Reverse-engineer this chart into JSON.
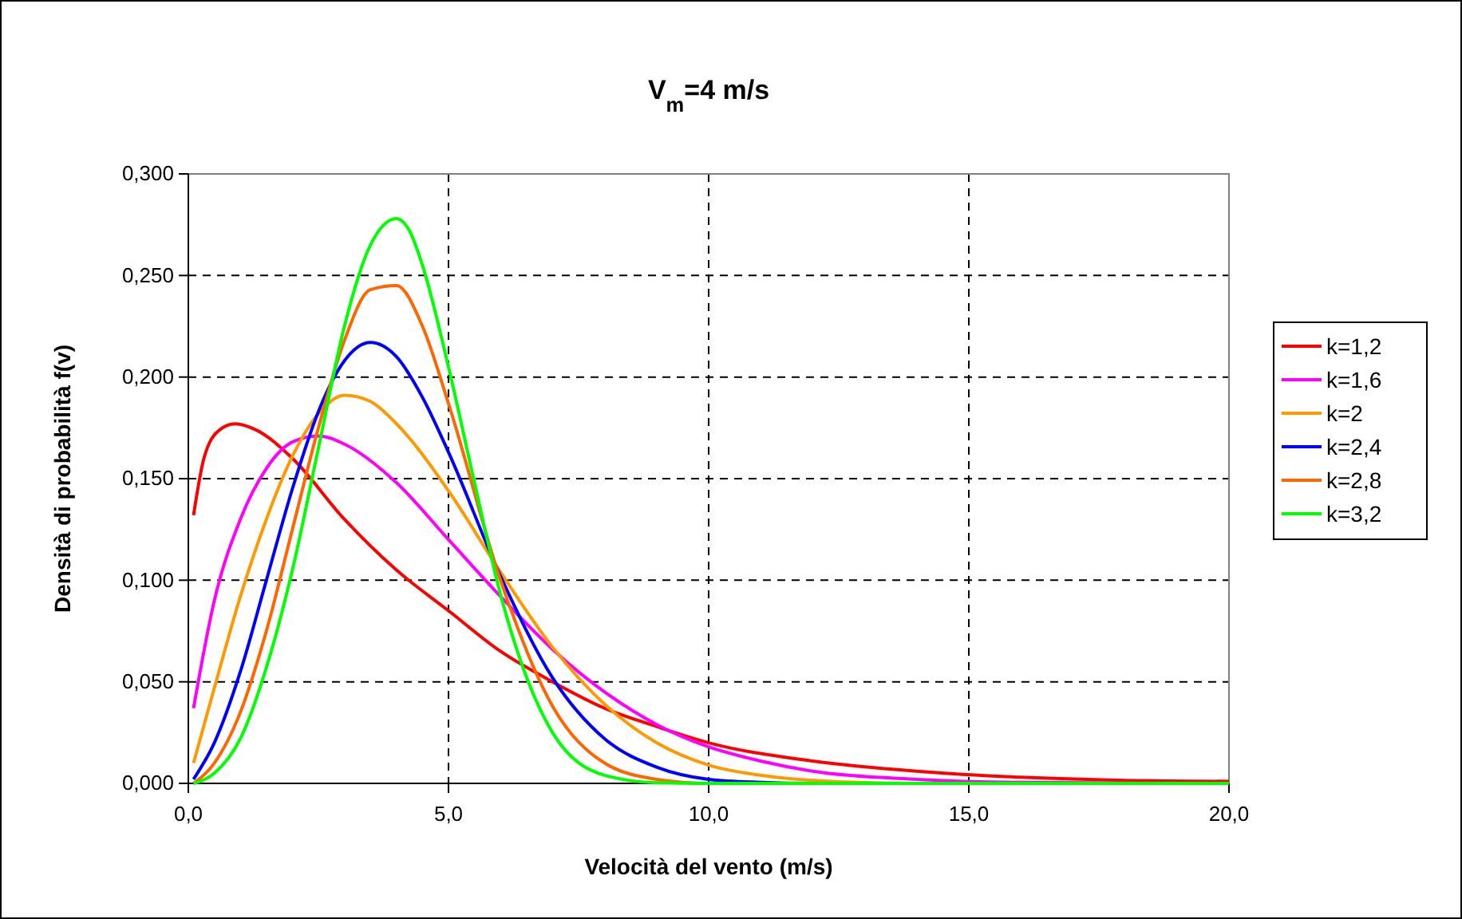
{
  "chart_data": {
    "type": "line",
    "title": "V$_{m}$=4 m/s",
    "xlabel": "Velocità del vento (m/s)",
    "ylabel": "Densità di probabilità f(v)",
    "xlim": [
      0,
      20
    ],
    "ylim": [
      0,
      0.3
    ],
    "xticks": [
      {
        "value": 0,
        "label": "0,0"
      },
      {
        "value": 5,
        "label": "5,0"
      },
      {
        "value": 10,
        "label": "10,0"
      },
      {
        "value": 15,
        "label": "15,0"
      },
      {
        "value": 20,
        "label": "20,0"
      }
    ],
    "yticks": [
      {
        "value": 0,
        "label": "0,000"
      },
      {
        "value": 0.05,
        "label": "0,050"
      },
      {
        "value": 0.1,
        "label": "0,100"
      },
      {
        "value": 0.15,
        "label": "0,150"
      },
      {
        "value": 0.2,
        "label": "0,200"
      },
      {
        "value": 0.25,
        "label": "0,250"
      },
      {
        "value": 0.3,
        "label": "0,300"
      }
    ],
    "grid": true,
    "legend": "right",
    "marker": "none",
    "line_style": "solid",
    "series": [
      {
        "name": "k=1,2",
        "color": "#ff0000",
        "x": [
          0.1,
          0.3,
          0.6,
          0.9,
          1.3,
          2,
          3,
          4,
          5,
          6,
          7,
          8,
          9,
          10,
          12,
          14,
          16,
          18,
          20
        ],
        "values": [
          0.132,
          0.16,
          0.174,
          0.177,
          0.174,
          0.16,
          0.13,
          0.105,
          0.085,
          0.065,
          0.05,
          0.037,
          0.028,
          0.02,
          0.011,
          0.006,
          0.003,
          0.0015,
          0.001
        ]
      },
      {
        "name": "k=1,6",
        "color": "#ff00ff",
        "x": [
          0.1,
          0.5,
          1,
          1.5,
          2,
          2.5,
          3,
          4,
          5,
          6,
          7,
          8,
          9,
          10,
          11,
          12,
          14,
          16,
          20
        ],
        "values": [
          0.037,
          0.09,
          0.13,
          0.155,
          0.168,
          0.171,
          0.167,
          0.148,
          0.12,
          0.092,
          0.066,
          0.045,
          0.029,
          0.018,
          0.011,
          0.006,
          0.002,
          0.0005,
          0
        ]
      },
      {
        "name": "k=2",
        "color": "#ff9900",
        "x": [
          0.1,
          0.5,
          1,
          1.5,
          2,
          2.5,
          3,
          3.5,
          4,
          5,
          6,
          7,
          8,
          9,
          10,
          11,
          12,
          14,
          20
        ],
        "values": [
          0.01,
          0.047,
          0.092,
          0.13,
          0.161,
          0.182,
          0.191,
          0.188,
          0.177,
          0.144,
          0.104,
          0.067,
          0.039,
          0.02,
          0.009,
          0.004,
          0.0015,
          0,
          0
        ]
      },
      {
        "name": "k=2,4",
        "color": "#0000ff",
        "x": [
          0.1,
          0.5,
          1,
          1.5,
          2,
          2.5,
          3,
          3.5,
          4,
          4.5,
          5,
          6,
          7,
          8,
          9,
          10,
          11,
          12,
          20
        ],
        "values": [
          0.002,
          0.02,
          0.055,
          0.1,
          0.145,
          0.183,
          0.208,
          0.217,
          0.21,
          0.19,
          0.163,
          0.102,
          0.052,
          0.022,
          0.008,
          0.002,
          0.0005,
          0,
          0
        ]
      },
      {
        "name": "k=2,8",
        "color": "#ff6600",
        "x": [
          0.1,
          0.5,
          1,
          1.5,
          2,
          2.5,
          3,
          3.5,
          4,
          4.5,
          5,
          6,
          7,
          8,
          9,
          10,
          20
        ],
        "values": [
          0,
          0.01,
          0.035,
          0.075,
          0.125,
          0.175,
          0.218,
          0.243,
          0.245,
          0.225,
          0.187,
          0.1,
          0.038,
          0.01,
          0.002,
          0,
          0
        ]
      },
      {
        "name": "k=3,2",
        "color": "#00ff00",
        "x": [
          0.1,
          0.5,
          1,
          1.5,
          2,
          2.5,
          3,
          3.5,
          4,
          4.25,
          4.5,
          5,
          5.5,
          6,
          7,
          8,
          9,
          10,
          20
        ],
        "values": [
          0,
          0.005,
          0.022,
          0.057,
          0.105,
          0.165,
          0.225,
          0.265,
          0.278,
          0.272,
          0.255,
          0.205,
          0.148,
          0.093,
          0.025,
          0.004,
          0.0003,
          0,
          0
        ]
      }
    ]
  }
}
